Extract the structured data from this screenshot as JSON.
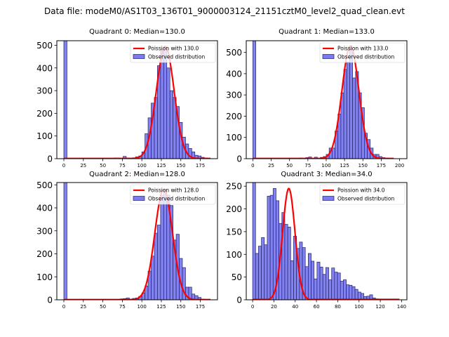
{
  "figure": {
    "suptitle": "Data file: modeM0/AS1T03_136T01_9000003124_21151cztM0_level2_quad_clean.evt"
  },
  "colors": {
    "bar_fill": "#7b7bf0",
    "bar_edge": "#22226a",
    "poisson_line": "#ff0000"
  },
  "chart_data": [
    {
      "type": "bar",
      "title": "Quadrant 0: Median=130.0",
      "legend": [
        "Poission with 130.0",
        "Observed distribution"
      ],
      "legend_position": "top-right",
      "xlim": [
        -9,
        197
      ],
      "ylim": [
        0,
        520
      ],
      "xticks": [
        0,
        25,
        50,
        75,
        100,
        125,
        150,
        175
      ],
      "yticks": [
        0,
        100,
        200,
        300,
        400,
        500
      ],
      "bin_width": 4,
      "bins": [
        [
          0,
          520
        ],
        [
          60,
          2
        ],
        [
          64,
          3
        ],
        [
          68,
          3
        ],
        [
          76,
          10
        ],
        [
          80,
          3
        ],
        [
          88,
          4
        ],
        [
          92,
          8
        ],
        [
          96,
          12
        ],
        [
          100,
          30
        ],
        [
          104,
          110
        ],
        [
          108,
          180
        ],
        [
          112,
          245
        ],
        [
          116,
          270
        ],
        [
          120,
          410
        ],
        [
          124,
          480
        ],
        [
          128,
          485
        ],
        [
          132,
          400
        ],
        [
          136,
          300
        ],
        [
          140,
          270
        ],
        [
          144,
          230
        ],
        [
          148,
          160
        ],
        [
          152,
          95
        ],
        [
          156,
          65
        ],
        [
          160,
          45
        ],
        [
          164,
          30
        ],
        [
          168,
          15
        ],
        [
          172,
          12
        ],
        [
          176,
          6
        ],
        [
          180,
          3
        ]
      ],
      "poisson_mean": 130.0,
      "poisson_peak": 495,
      "poisson_range": [
        0,
        188
      ]
    },
    {
      "type": "bar",
      "title": "Quadrant 1: Median=133.0",
      "legend": [
        "Poission with 133.0",
        "Observed distribution"
      ],
      "legend_position": "top-right",
      "xlim": [
        -9,
        210
      ],
      "ylim": [
        0,
        555
      ],
      "xticks": [
        0,
        25,
        50,
        75,
        100,
        125,
        150,
        175,
        200
      ],
      "yticks": [
        0,
        100,
        200,
        300,
        400,
        500
      ],
      "bin_width": 4,
      "bins": [
        [
          0,
          555
        ],
        [
          64,
          3
        ],
        [
          72,
          5
        ],
        [
          76,
          8
        ],
        [
          84,
          7
        ],
        [
          92,
          6
        ],
        [
          96,
          10
        ],
        [
          100,
          20
        ],
        [
          104,
          50
        ],
        [
          108,
          50
        ],
        [
          112,
          130
        ],
        [
          116,
          210
        ],
        [
          120,
          310
        ],
        [
          124,
          420
        ],
        [
          128,
          455
        ],
        [
          132,
          520
        ],
        [
          136,
          380
        ],
        [
          140,
          410
        ],
        [
          144,
          310
        ],
        [
          148,
          240
        ],
        [
          152,
          120
        ],
        [
          156,
          90
        ],
        [
          160,
          50
        ],
        [
          164,
          20
        ],
        [
          168,
          20
        ],
        [
          172,
          10
        ],
        [
          176,
          5
        ],
        [
          180,
          3
        ],
        [
          184,
          2
        ]
      ],
      "poisson_mean": 133.0,
      "poisson_peak": 530,
      "poisson_range": [
        0,
        192
      ]
    },
    {
      "type": "bar",
      "title": "Quadrant 2: Median=128.0",
      "legend": [
        "Poission with 128.0",
        "Observed distribution"
      ],
      "legend_position": "top-right",
      "xlim": [
        -9,
        197
      ],
      "ylim": [
        0,
        510
      ],
      "xticks": [
        0,
        25,
        50,
        75,
        100,
        125,
        150,
        175
      ],
      "yticks": [
        0,
        100,
        200,
        300,
        400,
        500
      ],
      "bin_width": 4,
      "bins": [
        [
          0,
          510
        ],
        [
          72,
          4
        ],
        [
          76,
          5
        ],
        [
          80,
          8
        ],
        [
          84,
          3
        ],
        [
          88,
          6
        ],
        [
          92,
          8
        ],
        [
          96,
          15
        ],
        [
          100,
          30
        ],
        [
          104,
          60
        ],
        [
          108,
          125
        ],
        [
          112,
          190
        ],
        [
          116,
          290
        ],
        [
          120,
          325
        ],
        [
          124,
          455
        ],
        [
          128,
          480
        ],
        [
          132,
          455
        ],
        [
          136,
          410
        ],
        [
          140,
          260
        ],
        [
          144,
          285
        ],
        [
          148,
          180
        ],
        [
          152,
          140
        ],
        [
          156,
          55
        ],
        [
          160,
          55
        ],
        [
          164,
          25
        ],
        [
          168,
          18
        ],
        [
          172,
          10
        ],
        [
          176,
          3
        ]
      ],
      "poisson_mean": 128.0,
      "poisson_peak": 480,
      "poisson_range": [
        0,
        188
      ]
    },
    {
      "type": "bar",
      "title": "Quadrant 3: Median=34.0",
      "legend": [
        "Poission with 34.0",
        "Observed distribution"
      ],
      "legend_position": "top-right",
      "xlim": [
        -6,
        145
      ],
      "ylim": [
        0,
        258
      ],
      "xticks": [
        0,
        20,
        40,
        60,
        80,
        100,
        120,
        140
      ],
      "yticks": [
        0,
        50,
        100,
        150,
        200,
        250
      ],
      "bin_width": 2.75,
      "bins": [
        [
          0,
          258
        ],
        [
          2.75,
          102
        ],
        [
          5.5,
          118
        ],
        [
          8.25,
          137
        ],
        [
          11,
          121
        ],
        [
          13.75,
          228
        ],
        [
          16.5,
          230
        ],
        [
          19.25,
          245
        ],
        [
          22,
          218
        ],
        [
          24.75,
          168
        ],
        [
          27.5,
          192
        ],
        [
          30.25,
          166
        ],
        [
          33,
          160
        ],
        [
          35.75,
          86
        ],
        [
          38.5,
          140
        ],
        [
          41.25,
          113
        ],
        [
          44,
          127
        ],
        [
          46.75,
          115
        ],
        [
          49.5,
          73
        ],
        [
          52.25,
          102
        ],
        [
          55,
          85
        ],
        [
          57.75,
          46
        ],
        [
          60.5,
          83
        ],
        [
          63.25,
          72
        ],
        [
          66,
          56
        ],
        [
          68.75,
          71
        ],
        [
          71.5,
          44
        ],
        [
          74.25,
          70
        ],
        [
          77,
          61
        ],
        [
          79.75,
          59
        ],
        [
          82.5,
          41
        ],
        [
          85.25,
          44
        ],
        [
          88,
          33
        ],
        [
          90.75,
          32
        ],
        [
          93.5,
          29
        ],
        [
          96.25,
          23
        ],
        [
          99,
          17
        ],
        [
          101.75,
          14
        ],
        [
          104.5,
          7
        ],
        [
          107.25,
          8
        ],
        [
          110,
          11
        ],
        [
          112.75,
          4
        ],
        [
          115.5,
          2
        ]
      ],
      "poisson_mean": 34.0,
      "poisson_peak": 245,
      "poisson_range": [
        0,
        138
      ]
    }
  ]
}
